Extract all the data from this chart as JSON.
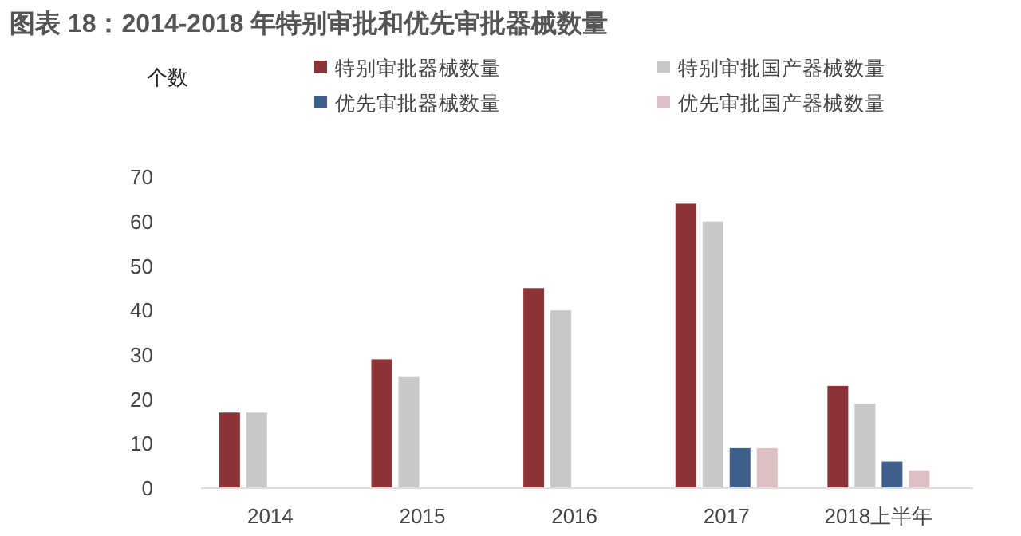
{
  "chart_data": {
    "type": "bar",
    "title": "图表 18：2014-2018 年特别审批和优先审批器械数量",
    "ylabel": "个数",
    "categories": [
      "2014",
      "2015",
      "2016",
      "2017",
      "2018上半年"
    ],
    "series": [
      {
        "name": "特别审批器械数量",
        "color": "#8e3439",
        "values": [
          17,
          29,
          45,
          64,
          23
        ]
      },
      {
        "name": "特别审批国产器械数量",
        "color": "#c8c8c8",
        "values": [
          17,
          25,
          40,
          60,
          19
        ]
      },
      {
        "name": "优先审批器械数量",
        "color": "#3e5f8a",
        "values": [
          null,
          null,
          null,
          9,
          6
        ]
      },
      {
        "name": "优先审批国产器械数量",
        "color": "#dcc0c4",
        "values": [
          null,
          null,
          null,
          9,
          4
        ]
      }
    ],
    "ylim": [
      0,
      70
    ],
    "yticks": [
      0,
      10,
      20,
      30,
      40,
      50,
      60,
      70
    ],
    "legend": "top"
  }
}
